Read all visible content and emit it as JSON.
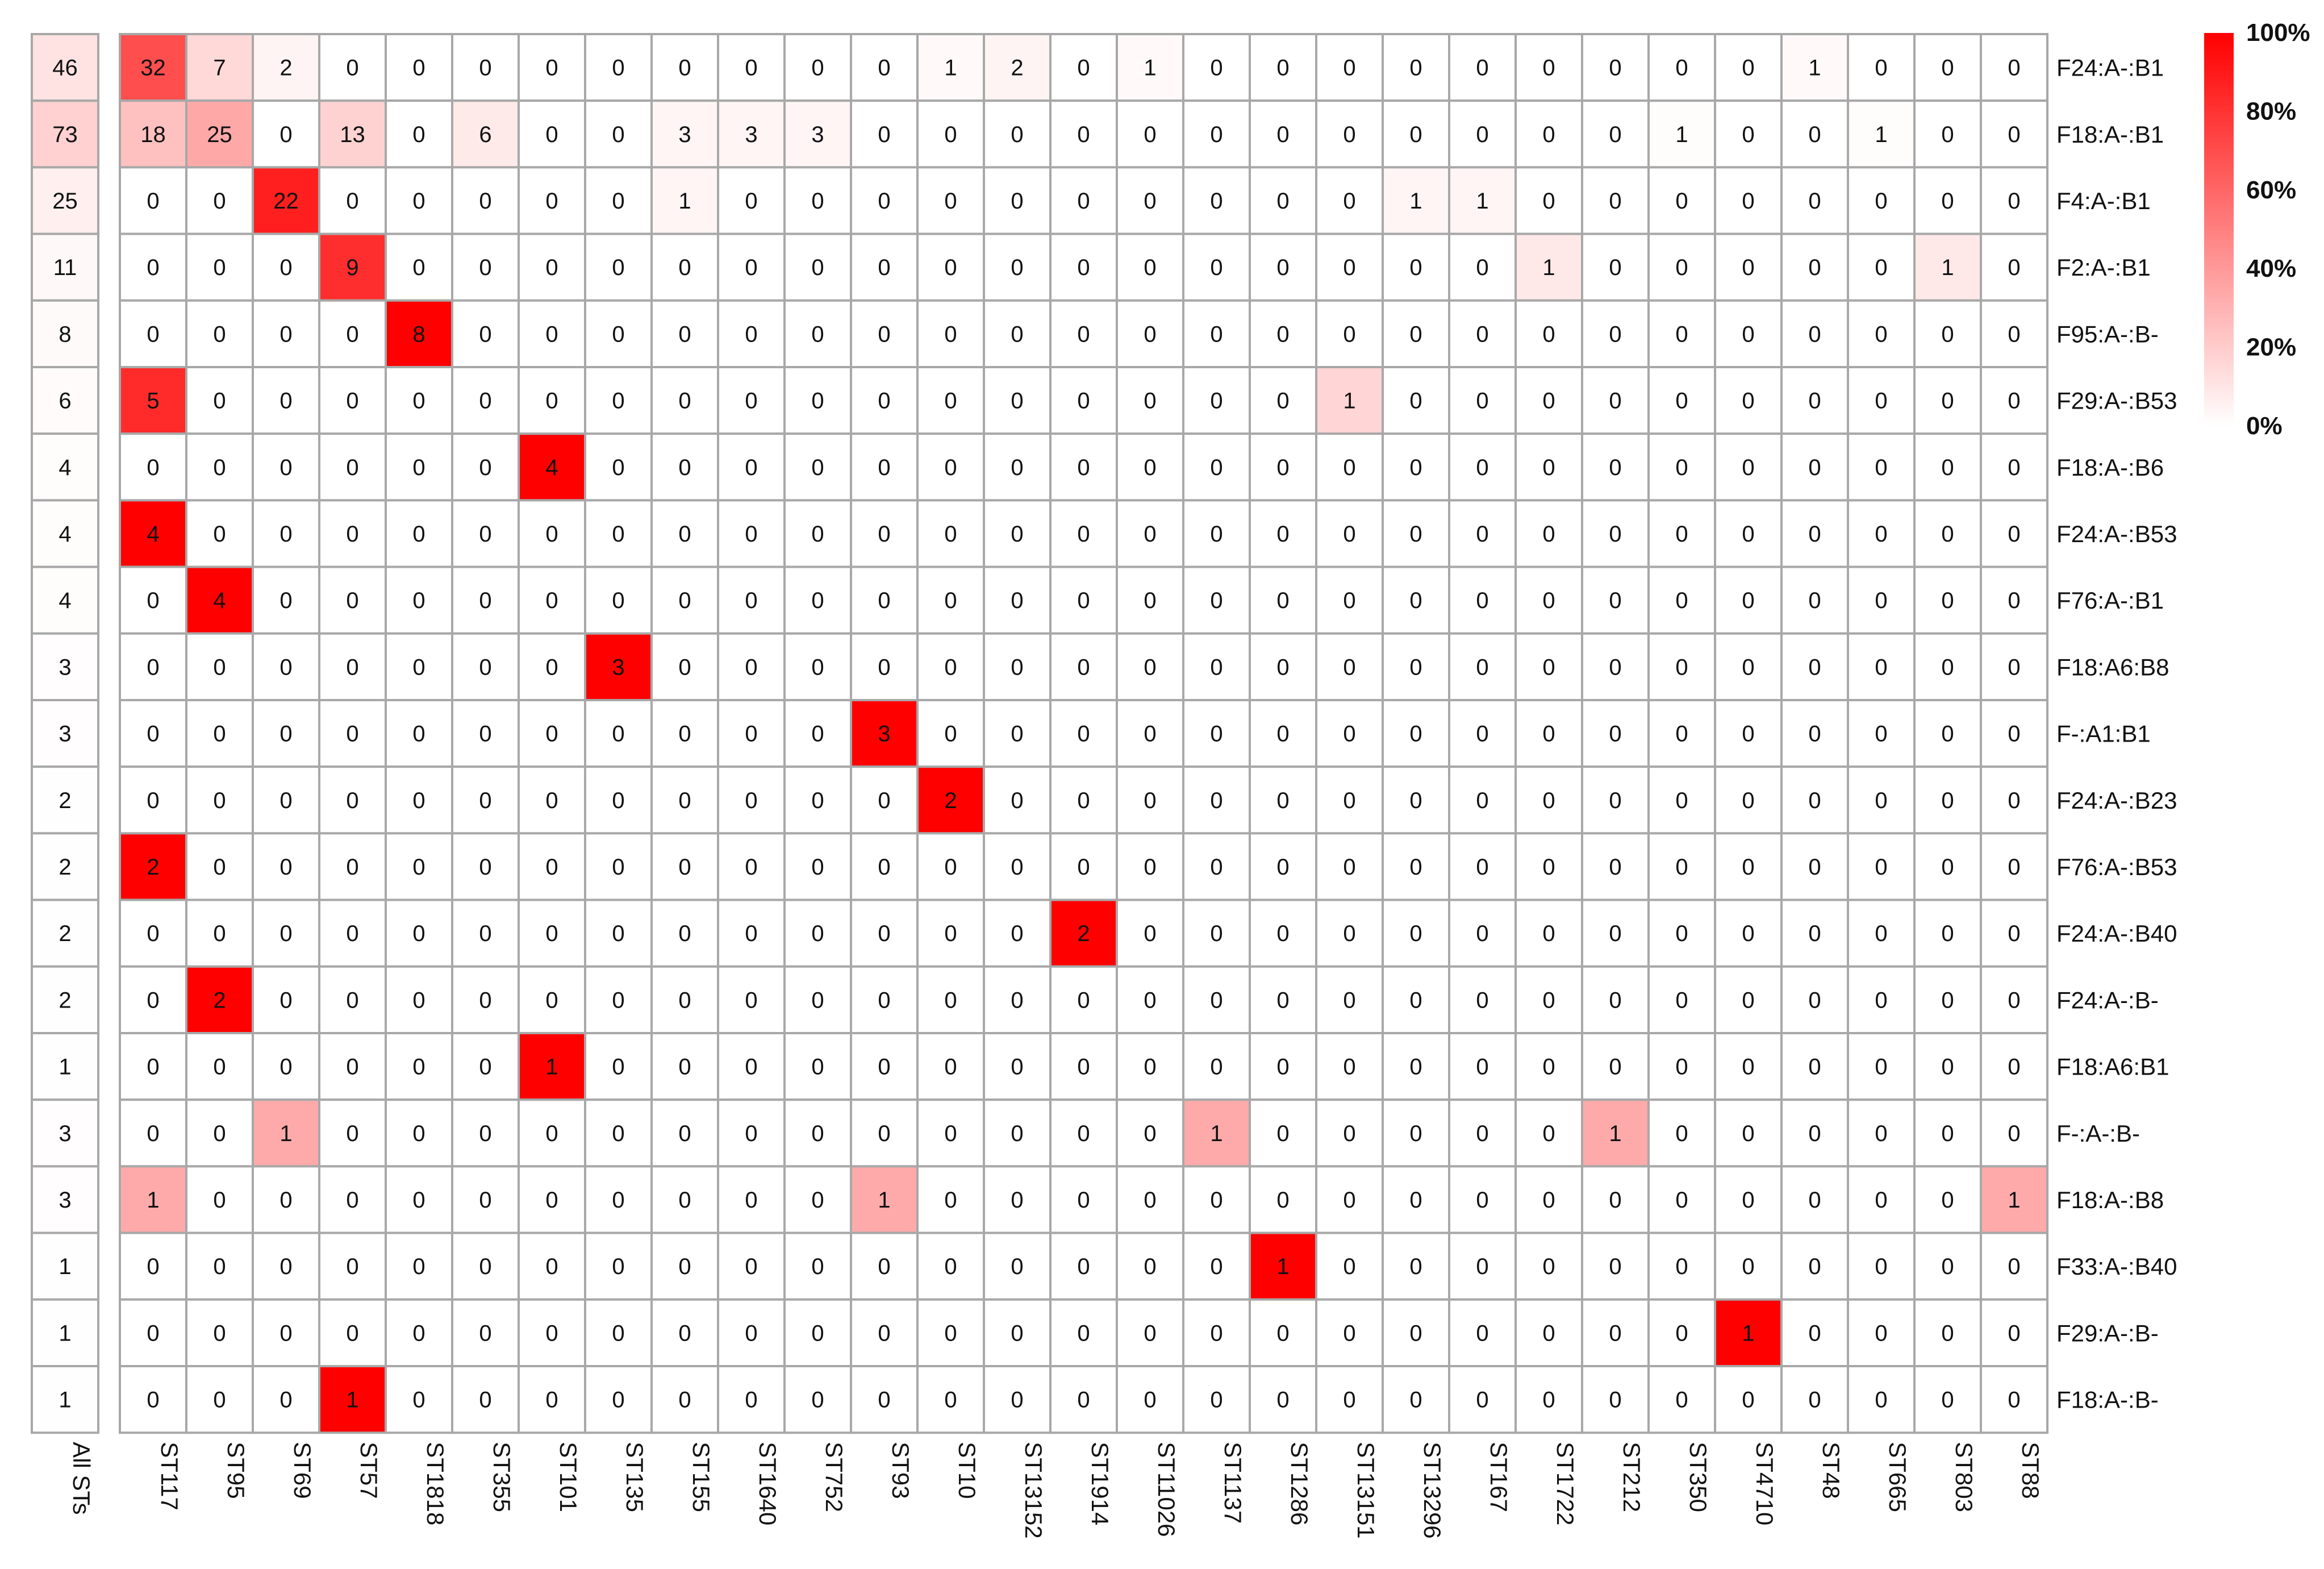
{
  "chart_data": {
    "type": "heatmap",
    "rows": [
      "F24:A-:B1",
      "F18:A-:B1",
      "F4:A-:B1",
      "F2:A-:B1",
      "F95:A-:B-",
      "F29:A-:B53",
      "F18:A-:B6",
      "F24:A-:B53",
      "F76:A-:B1",
      "F18:A6:B8",
      "F-:A1:B1",
      "F24:A-:B23",
      "F76:A-:B53",
      "F24:A-:B40",
      "F24:A-:B-",
      "F18:A6:B1",
      "F-:A-:B-",
      "F18:A-:B8",
      "F33:A-:B40",
      "F29:A-:B-",
      "F18:A-:B-"
    ],
    "total_label": "All STs",
    "totals": [
      46,
      73,
      25,
      11,
      8,
      6,
      4,
      4,
      4,
      3,
      3,
      2,
      2,
      2,
      2,
      1,
      3,
      3,
      1,
      1,
      1
    ],
    "columns": [
      "ST117",
      "ST95",
      "ST69",
      "ST57",
      "ST1818",
      "ST355",
      "ST101",
      "ST135",
      "ST155",
      "ST1640",
      "ST752",
      "ST93",
      "ST10",
      "ST13152",
      "ST1914",
      "ST11026",
      "ST1137",
      "ST1286",
      "ST13151",
      "ST13296",
      "ST167",
      "ST1722",
      "ST212",
      "ST350",
      "ST4710",
      "ST48",
      "ST665",
      "ST803",
      "ST88"
    ],
    "values": [
      [
        32,
        7,
        2,
        0,
        0,
        0,
        0,
        0,
        0,
        0,
        0,
        0,
        1,
        2,
        0,
        1,
        0,
        0,
        0,
        0,
        0,
        0,
        0,
        0,
        0,
        1,
        0,
        0,
        0
      ],
      [
        18,
        25,
        0,
        13,
        0,
        6,
        0,
        0,
        3,
        3,
        3,
        0,
        0,
        0,
        0,
        0,
        0,
        0,
        0,
        0,
        0,
        0,
        0,
        1,
        0,
        0,
        1,
        0,
        0
      ],
      [
        0,
        0,
        22,
        0,
        0,
        0,
        0,
        0,
        1,
        0,
        0,
        0,
        0,
        0,
        0,
        0,
        0,
        0,
        0,
        1,
        1,
        0,
        0,
        0,
        0,
        0,
        0,
        0,
        0
      ],
      [
        0,
        0,
        0,
        9,
        0,
        0,
        0,
        0,
        0,
        0,
        0,
        0,
        0,
        0,
        0,
        0,
        0,
        0,
        0,
        0,
        0,
        1,
        0,
        0,
        0,
        0,
        0,
        1,
        0
      ],
      [
        0,
        0,
        0,
        0,
        8,
        0,
        0,
        0,
        0,
        0,
        0,
        0,
        0,
        0,
        0,
        0,
        0,
        0,
        0,
        0,
        0,
        0,
        0,
        0,
        0,
        0,
        0,
        0,
        0
      ],
      [
        5,
        0,
        0,
        0,
        0,
        0,
        0,
        0,
        0,
        0,
        0,
        0,
        0,
        0,
        0,
        0,
        0,
        0,
        1,
        0,
        0,
        0,
        0,
        0,
        0,
        0,
        0,
        0,
        0
      ],
      [
        0,
        0,
        0,
        0,
        0,
        0,
        4,
        0,
        0,
        0,
        0,
        0,
        0,
        0,
        0,
        0,
        0,
        0,
        0,
        0,
        0,
        0,
        0,
        0,
        0,
        0,
        0,
        0,
        0
      ],
      [
        4,
        0,
        0,
        0,
        0,
        0,
        0,
        0,
        0,
        0,
        0,
        0,
        0,
        0,
        0,
        0,
        0,
        0,
        0,
        0,
        0,
        0,
        0,
        0,
        0,
        0,
        0,
        0,
        0
      ],
      [
        0,
        4,
        0,
        0,
        0,
        0,
        0,
        0,
        0,
        0,
        0,
        0,
        0,
        0,
        0,
        0,
        0,
        0,
        0,
        0,
        0,
        0,
        0,
        0,
        0,
        0,
        0,
        0,
        0
      ],
      [
        0,
        0,
        0,
        0,
        0,
        0,
        0,
        3,
        0,
        0,
        0,
        0,
        0,
        0,
        0,
        0,
        0,
        0,
        0,
        0,
        0,
        0,
        0,
        0,
        0,
        0,
        0,
        0,
        0
      ],
      [
        0,
        0,
        0,
        0,
        0,
        0,
        0,
        0,
        0,
        0,
        0,
        3,
        0,
        0,
        0,
        0,
        0,
        0,
        0,
        0,
        0,
        0,
        0,
        0,
        0,
        0,
        0,
        0,
        0
      ],
      [
        0,
        0,
        0,
        0,
        0,
        0,
        0,
        0,
        0,
        0,
        0,
        0,
        2,
        0,
        0,
        0,
        0,
        0,
        0,
        0,
        0,
        0,
        0,
        0,
        0,
        0,
        0,
        0,
        0
      ],
      [
        2,
        0,
        0,
        0,
        0,
        0,
        0,
        0,
        0,
        0,
        0,
        0,
        0,
        0,
        0,
        0,
        0,
        0,
        0,
        0,
        0,
        0,
        0,
        0,
        0,
        0,
        0,
        0,
        0
      ],
      [
        0,
        0,
        0,
        0,
        0,
        0,
        0,
        0,
        0,
        0,
        0,
        0,
        0,
        0,
        2,
        0,
        0,
        0,
        0,
        0,
        0,
        0,
        0,
        0,
        0,
        0,
        0,
        0,
        0
      ],
      [
        0,
        2,
        0,
        0,
        0,
        0,
        0,
        0,
        0,
        0,
        0,
        0,
        0,
        0,
        0,
        0,
        0,
        0,
        0,
        0,
        0,
        0,
        0,
        0,
        0,
        0,
        0,
        0,
        0
      ],
      [
        0,
        0,
        0,
        0,
        0,
        0,
        1,
        0,
        0,
        0,
        0,
        0,
        0,
        0,
        0,
        0,
        0,
        0,
        0,
        0,
        0,
        0,
        0,
        0,
        0,
        0,
        0,
        0,
        0
      ],
      [
        0,
        0,
        1,
        0,
        0,
        0,
        0,
        0,
        0,
        0,
        0,
        0,
        0,
        0,
        0,
        0,
        1,
        0,
        0,
        0,
        0,
        0,
        1,
        0,
        0,
        0,
        0,
        0,
        0
      ],
      [
        1,
        0,
        0,
        0,
        0,
        0,
        0,
        0,
        0,
        0,
        0,
        1,
        0,
        0,
        0,
        0,
        0,
        0,
        0,
        0,
        0,
        0,
        0,
        0,
        0,
        0,
        0,
        0,
        1
      ],
      [
        0,
        0,
        0,
        0,
        0,
        0,
        0,
        0,
        0,
        0,
        0,
        0,
        0,
        0,
        0,
        0,
        0,
        1,
        0,
        0,
        0,
        0,
        0,
        0,
        0,
        0,
        0,
        0,
        0
      ],
      [
        0,
        0,
        0,
        0,
        0,
        0,
        0,
        0,
        0,
        0,
        0,
        0,
        0,
        0,
        0,
        0,
        0,
        0,
        0,
        0,
        0,
        0,
        0,
        0,
        1,
        0,
        0,
        0,
        0
      ],
      [
        0,
        0,
        0,
        1,
        0,
        0,
        0,
        0,
        0,
        0,
        0,
        0,
        0,
        0,
        0,
        0,
        0,
        0,
        0,
        0,
        0,
        0,
        0,
        0,
        0,
        0,
        0,
        0,
        0
      ]
    ],
    "color_scale": {
      "min_color": "#ffffff",
      "max_color": "#ff0000",
      "grid_color": "#a8a8a8",
      "ticks": [
        "100%",
        "80%",
        "60%",
        "40%",
        "20%",
        "0%"
      ]
    },
    "legend_position": "top-right"
  }
}
